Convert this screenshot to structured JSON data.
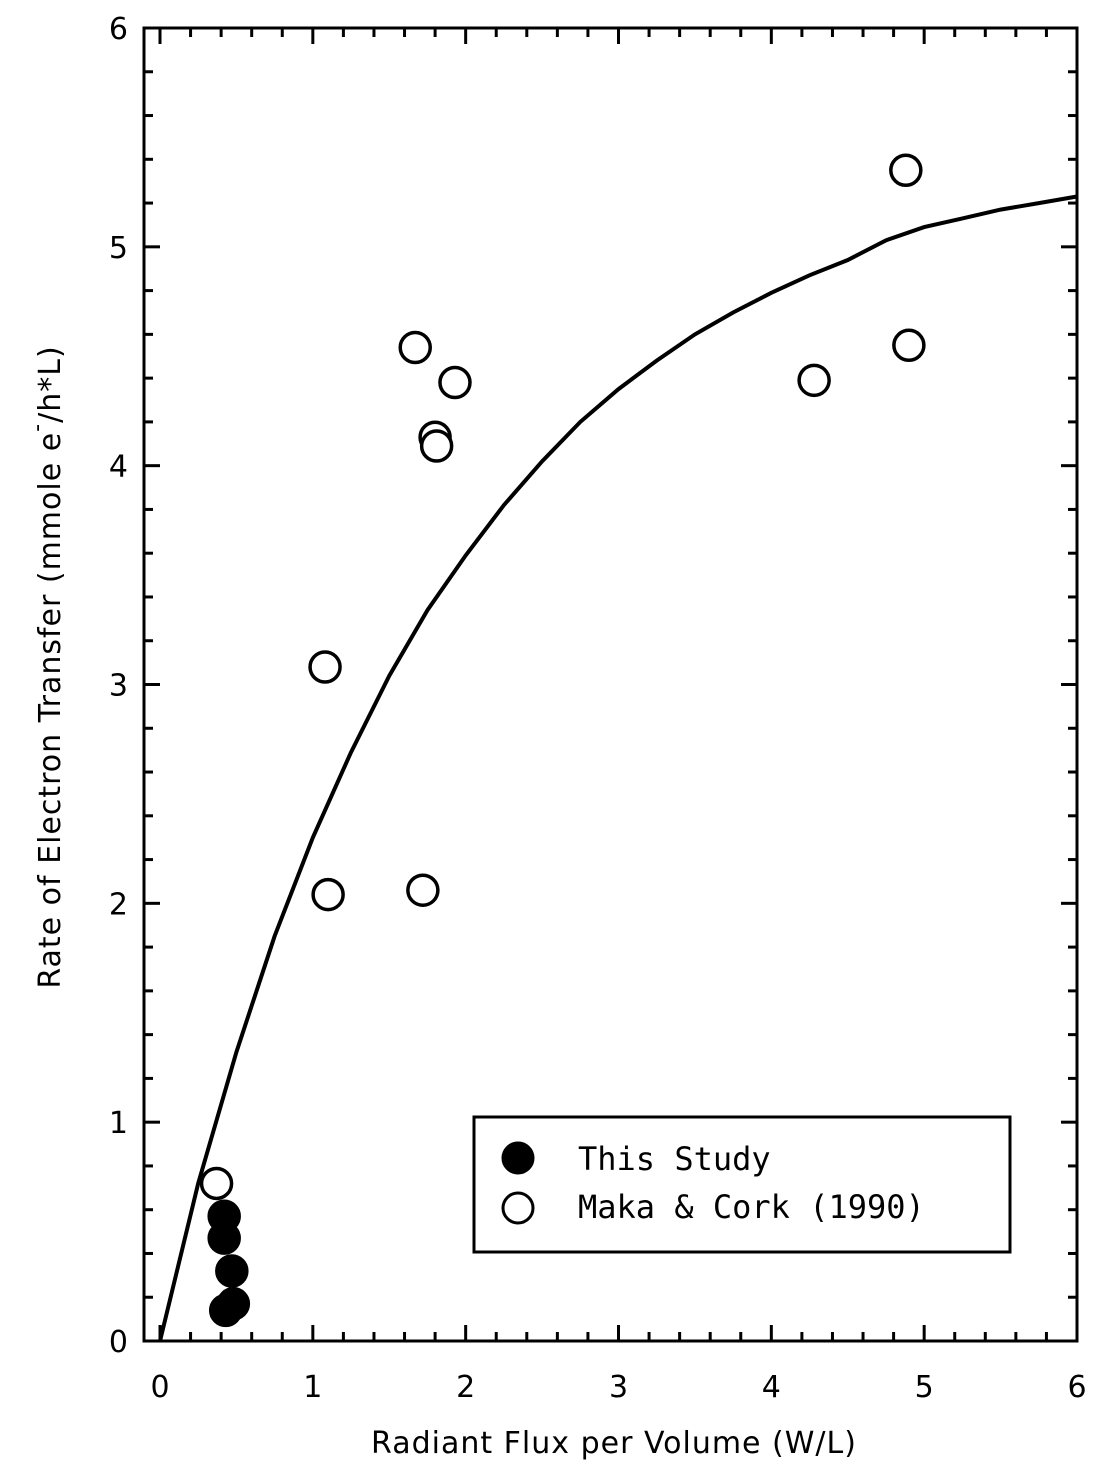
{
  "chart_data": {
    "type": "scatter",
    "xlabel": "Radiant Flux per Volume (W/L)",
    "ylabel_parts": [
      "Rate of Electron Transfer (mmole e",
      "-",
      "/h*L)"
    ],
    "xlim": [
      0,
      6
    ],
    "ylim": [
      0,
      6
    ],
    "x_ticks": [
      "0",
      "1",
      "2",
      "3",
      "4",
      "5",
      "6"
    ],
    "y_ticks": [
      "0",
      "1",
      "2",
      "3",
      "4",
      "5",
      "6"
    ],
    "grid": false,
    "legend_position": "lower-right",
    "series": [
      {
        "name": "This Study",
        "marker": "filled-circle",
        "points": [
          {
            "x": 0.42,
            "y": 0.57
          },
          {
            "x": 0.42,
            "y": 0.47
          },
          {
            "x": 0.47,
            "y": 0.32
          },
          {
            "x": 0.48,
            "y": 0.17
          },
          {
            "x": 0.43,
            "y": 0.14
          }
        ]
      },
      {
        "name": "Maka & Cork (1990)",
        "marker": "open-circle",
        "points": [
          {
            "x": 0.37,
            "y": 0.72
          },
          {
            "x": 1.08,
            "y": 3.08
          },
          {
            "x": 1.1,
            "y": 2.04
          },
          {
            "x": 1.67,
            "y": 4.54
          },
          {
            "x": 1.72,
            "y": 2.06
          },
          {
            "x": 1.8,
            "y": 4.13
          },
          {
            "x": 1.81,
            "y": 4.09
          },
          {
            "x": 1.93,
            "y": 4.38
          },
          {
            "x": 4.28,
            "y": 4.39
          },
          {
            "x": 4.88,
            "y": 5.35
          },
          {
            "x": 4.9,
            "y": 4.55
          }
        ]
      }
    ],
    "fit_curve": {
      "points": [
        {
          "x": 0.0,
          "y": 0.0
        },
        {
          "x": 0.25,
          "y": 0.72
        },
        {
          "x": 0.5,
          "y": 1.32
        },
        {
          "x": 0.75,
          "y": 1.85
        },
        {
          "x": 1.0,
          "y": 2.3
        },
        {
          "x": 1.25,
          "y": 2.69
        },
        {
          "x": 1.5,
          "y": 3.04
        },
        {
          "x": 1.75,
          "y": 3.34
        },
        {
          "x": 2.0,
          "y": 3.59
        },
        {
          "x": 2.25,
          "y": 3.82
        },
        {
          "x": 2.5,
          "y": 4.02
        },
        {
          "x": 2.75,
          "y": 4.2
        },
        {
          "x": 3.0,
          "y": 4.35
        },
        {
          "x": 3.25,
          "y": 4.48
        },
        {
          "x": 3.5,
          "y": 4.6
        },
        {
          "x": 3.75,
          "y": 4.7
        },
        {
          "x": 4.0,
          "y": 4.79
        },
        {
          "x": 4.25,
          "y": 4.87
        },
        {
          "x": 4.5,
          "y": 4.94
        },
        {
          "x": 4.75,
          "y": 5.03
        },
        {
          "x": 5.0,
          "y": 5.09
        },
        {
          "x": 5.25,
          "y": 5.13
        },
        {
          "x": 5.5,
          "y": 5.17
        },
        {
          "x": 5.75,
          "y": 5.2
        },
        {
          "x": 6.0,
          "y": 5.23
        }
      ]
    }
  }
}
